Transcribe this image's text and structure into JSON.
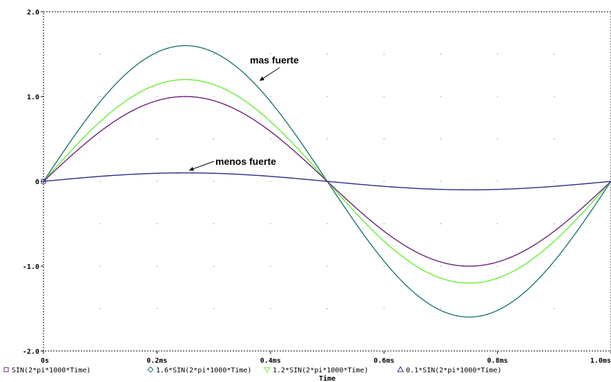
{
  "chart_data": {
    "type": "line",
    "xlabel": "Time",
    "xlim": [
      0,
      1.0
    ],
    "ylim": [
      -2.0,
      2.0
    ],
    "x_ticks": [
      {
        "value": 0,
        "label": "0s"
      },
      {
        "value": 0.2,
        "label": "0.2ms"
      },
      {
        "value": 0.4,
        "label": "0.4ms"
      },
      {
        "value": 0.6,
        "label": "0.6ms"
      },
      {
        "value": 0.8,
        "label": "0.8ms"
      },
      {
        "value": 1.0,
        "label": "1.0ms"
      }
    ],
    "y_ticks": [
      {
        "value": 2.0,
        "label": "2.0"
      },
      {
        "value": 1.0,
        "label": "1.0"
      },
      {
        "value": 0,
        "label": "0"
      },
      {
        "value": -1.0,
        "label": "-1.0"
      },
      {
        "value": -2.0,
        "label": "-2.0"
      }
    ],
    "grid": "dotted",
    "legend_position": "bottom",
    "series": [
      {
        "name": "SIN(2*pi*1000*Time)",
        "amplitude": 1.0,
        "color": "#6b1f78",
        "marker": "square"
      },
      {
        "name": "1.6*SIN(2*pi*1000*Time)",
        "amplitude": 1.6,
        "color": "#1f7575",
        "marker": "diamond"
      },
      {
        "name": "1.2*SIN(2*pi*1000*Time)",
        "amplitude": 1.2,
        "color": "#66ee33",
        "marker": "triangle-down"
      },
      {
        "name": "0.1*SIN(2*pi*1000*Time)",
        "amplitude": 0.1,
        "color": "#2a2a8a",
        "marker": "triangle-up"
      }
    ],
    "annotations": [
      {
        "text": "mas fuerte",
        "target_series": 1,
        "target_x": 0.38
      },
      {
        "text": "menos fuerte",
        "target_series": 3,
        "target_x": 0.26
      }
    ]
  }
}
